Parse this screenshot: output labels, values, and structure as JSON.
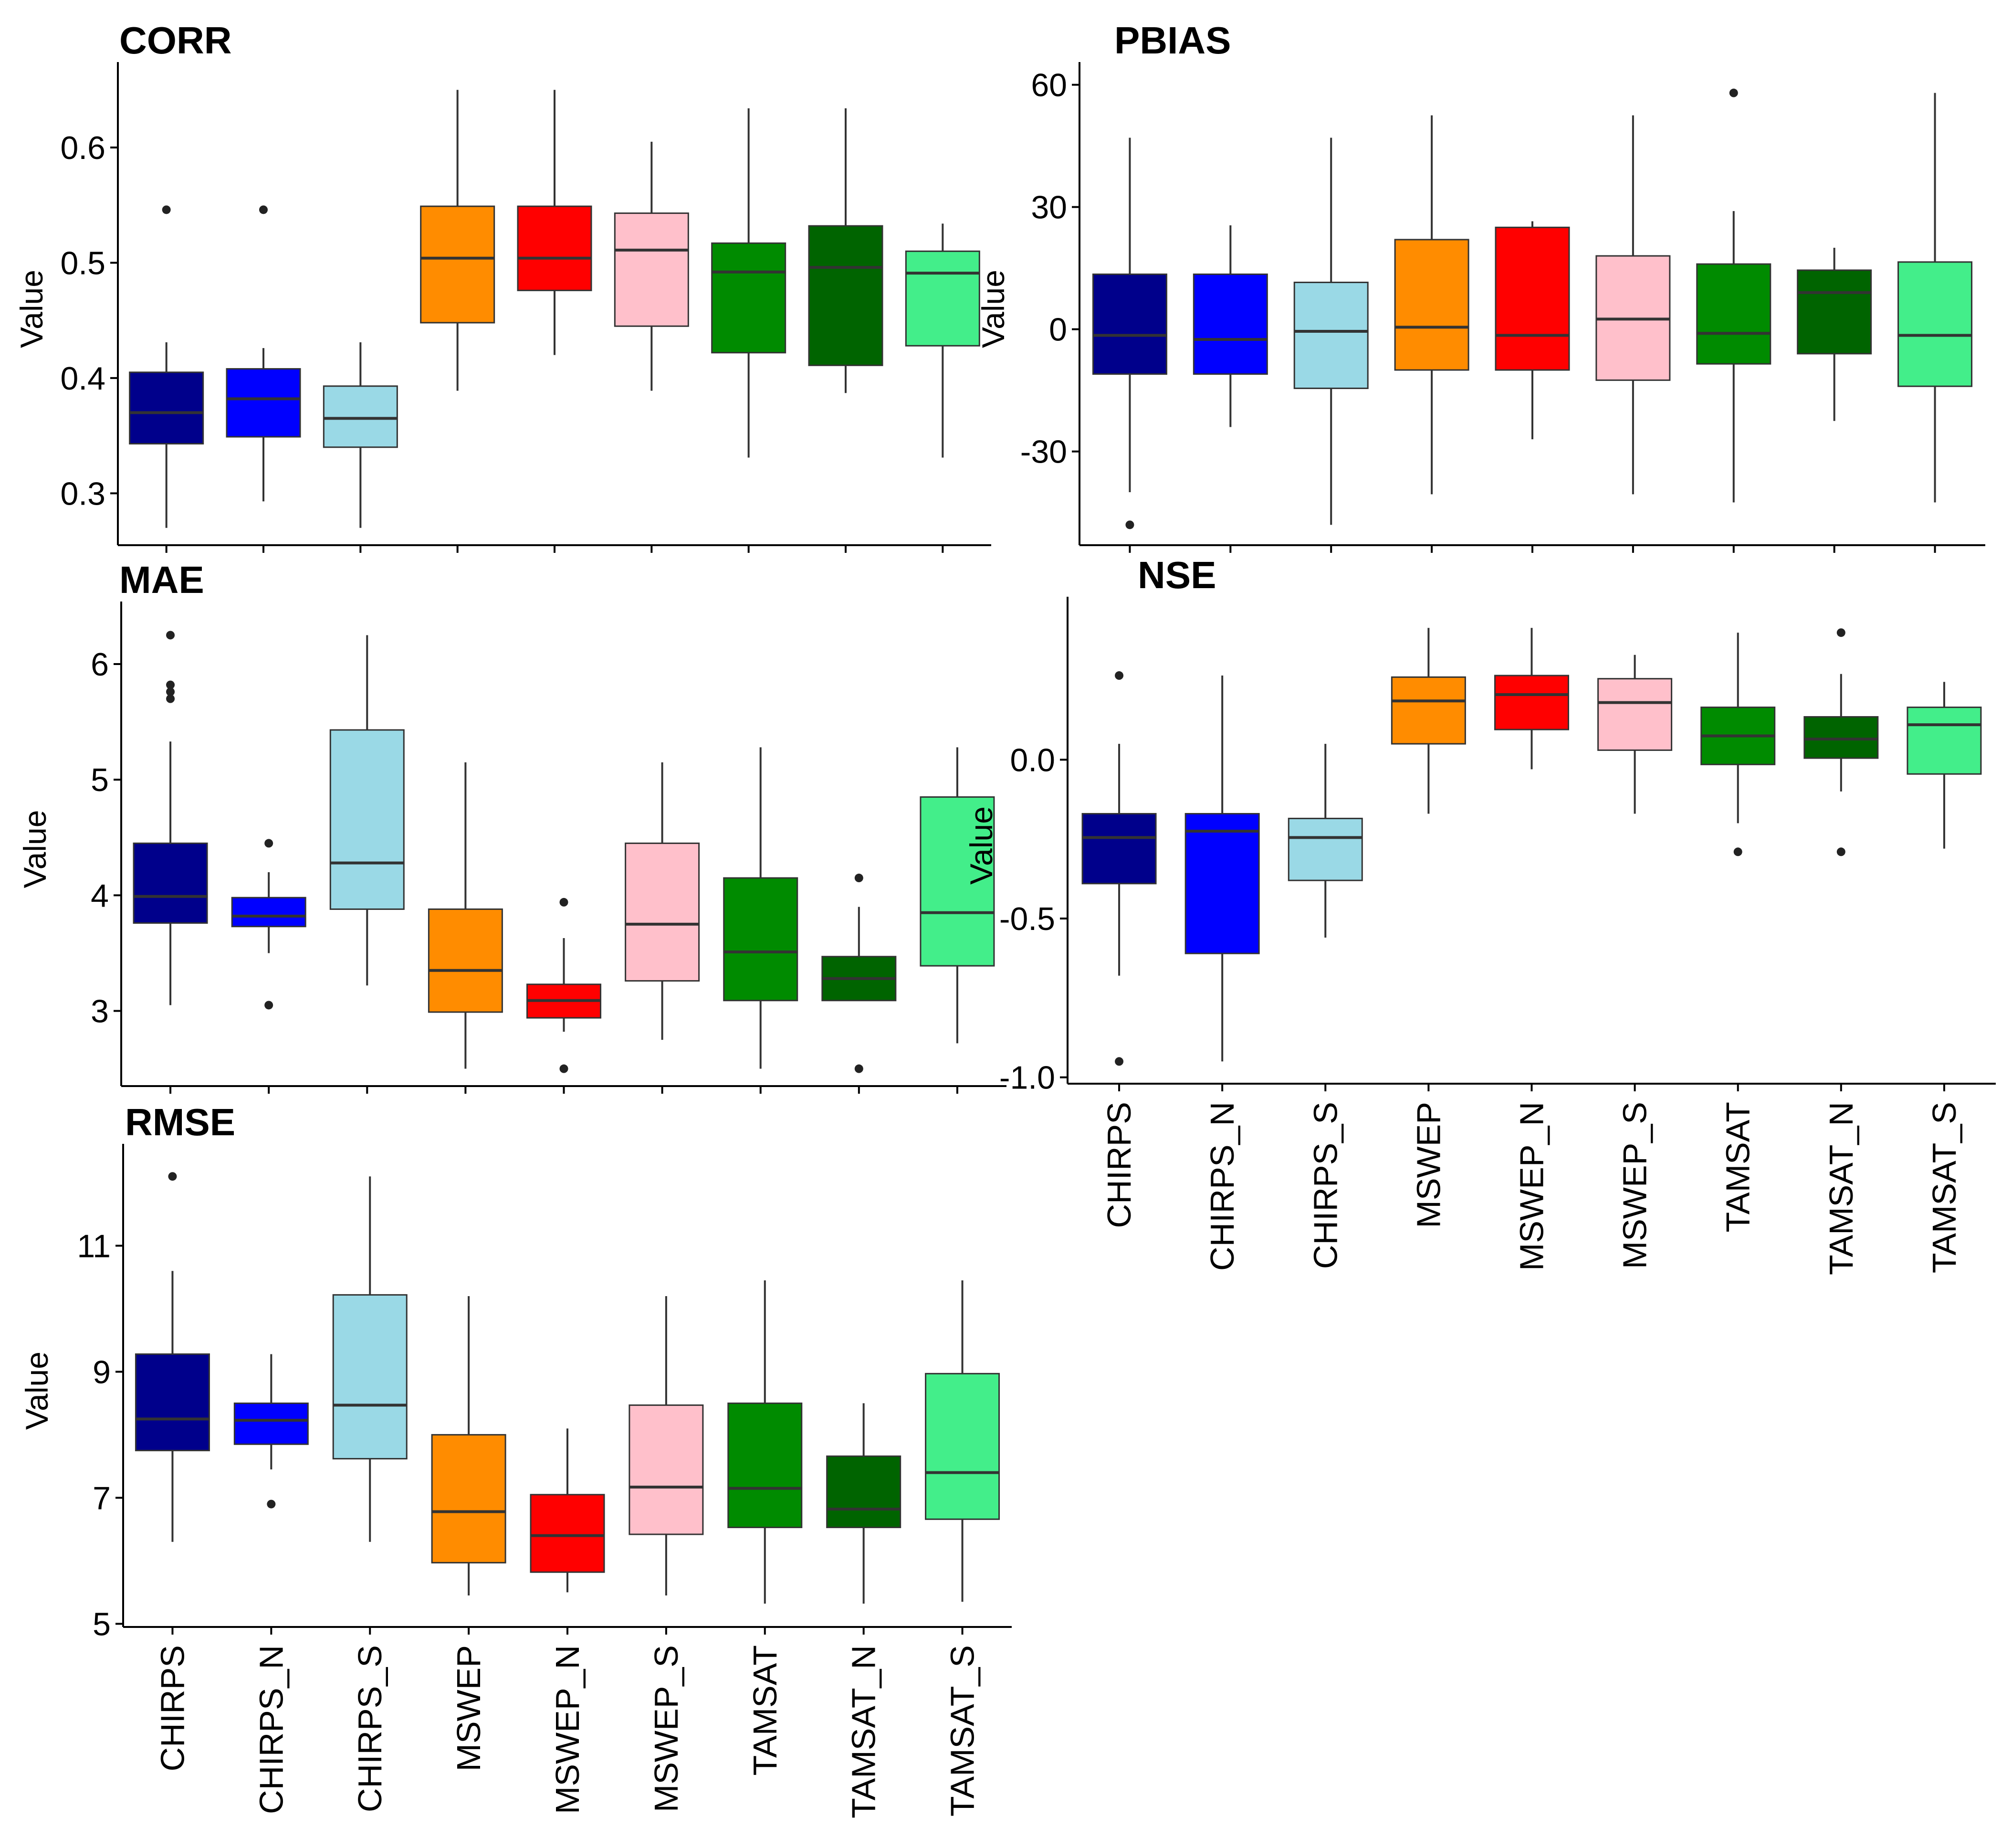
{
  "categories": [
    "CHIRPS",
    "CHIRPS_N",
    "CHIRPS_S",
    "MSWEP",
    "MSWEP_N",
    "MSWEP_S",
    "TAMSAT",
    "TAMSAT_N",
    "TAMSAT_S"
  ],
  "colors": [
    "#00008b",
    "#0000ff",
    "#9ad9e6",
    "#ff8c00",
    "#ff0000",
    "#ffc0cb",
    "#008b00",
    "#006400",
    "#43ee8a"
  ],
  "chart_data": [
    {
      "type": "boxplot",
      "title": "CORR",
      "ylabel": "Value",
      "ylim": [
        0.255,
        0.665
      ],
      "yticks": [
        0.3,
        0.4,
        0.5,
        0.6
      ],
      "ytick_labels": [
        "0.3",
        "0.4",
        "0.5",
        "0.6"
      ],
      "show_category_labels": false,
      "boxes": [
        {
          "low": 0.27,
          "q1": 0.343,
          "median": 0.37,
          "q3": 0.405,
          "high": 0.431,
          "outliers": [
            0.546
          ]
        },
        {
          "low": 0.293,
          "q1": 0.349,
          "median": 0.382,
          "q3": 0.408,
          "high": 0.426,
          "outliers": [
            0.546
          ]
        },
        {
          "low": 0.27,
          "q1": 0.34,
          "median": 0.365,
          "q3": 0.393,
          "high": 0.431,
          "outliers": []
        },
        {
          "low": 0.389,
          "q1": 0.448,
          "median": 0.504,
          "q3": 0.549,
          "high": 0.65,
          "outliers": []
        },
        {
          "low": 0.42,
          "q1": 0.476,
          "median": 0.504,
          "q3": 0.549,
          "high": 0.65,
          "outliers": []
        },
        {
          "low": 0.389,
          "q1": 0.445,
          "median": 0.511,
          "q3": 0.543,
          "high": 0.605,
          "outliers": []
        },
        {
          "low": 0.331,
          "q1": 0.422,
          "median": 0.492,
          "q3": 0.517,
          "high": 0.634,
          "outliers": []
        },
        {
          "low": 0.387,
          "q1": 0.411,
          "median": 0.496,
          "q3": 0.532,
          "high": 0.634,
          "outliers": []
        },
        {
          "low": 0.331,
          "q1": 0.428,
          "median": 0.491,
          "q3": 0.51,
          "high": 0.534,
          "outliers": []
        }
      ]
    },
    {
      "type": "boxplot",
      "title": "PBIAS",
      "ylabel": "Value",
      "ylim": [
        -53,
        63
      ],
      "yticks": [
        -30,
        0,
        30,
        60
      ],
      "ytick_labels": [
        "-30",
        "0",
        "30",
        "60"
      ],
      "show_category_labels": false,
      "boxes": [
        {
          "low": -40,
          "q1": -11,
          "median": -1.5,
          "q3": 13.5,
          "high": 47,
          "outliers": [
            -48
          ]
        },
        {
          "low": -24,
          "q1": -11,
          "median": -2.5,
          "q3": 13.5,
          "high": 25.5,
          "outliers": []
        },
        {
          "low": -48,
          "q1": -14.5,
          "median": -0.5,
          "q3": 11.5,
          "high": 47,
          "outliers": []
        },
        {
          "low": -40.5,
          "q1": -10,
          "median": 0.5,
          "q3": 22,
          "high": 52.5,
          "outliers": []
        },
        {
          "low": -27,
          "q1": -10,
          "median": -1.5,
          "q3": 25,
          "high": 26.5,
          "outliers": []
        },
        {
          "low": -40.5,
          "q1": -12.5,
          "median": 2.5,
          "q3": 18,
          "high": 52.5,
          "outliers": []
        },
        {
          "low": -42.5,
          "q1": -8.5,
          "median": -1,
          "q3": 16,
          "high": 29,
          "outliers": [
            58
          ]
        },
        {
          "low": -22.5,
          "q1": -6,
          "median": 9,
          "q3": 14.5,
          "high": 20,
          "outliers": []
        },
        {
          "low": -42.5,
          "q1": -14,
          "median": -1.5,
          "q3": 16.5,
          "high": 58,
          "outliers": []
        }
      ]
    },
    {
      "type": "boxplot",
      "title": "MAE",
      "ylabel": "Value",
      "ylim": [
        2.35,
        6.45
      ],
      "yticks": [
        3,
        4,
        5,
        6
      ],
      "ytick_labels": [
        "3",
        "4",
        "5",
        "6"
      ],
      "show_category_labels": false,
      "boxes": [
        {
          "low": 3.05,
          "q1": 3.76,
          "median": 3.99,
          "q3": 4.45,
          "high": 5.33,
          "outliers": [
            5.7,
            5.76,
            5.82,
            6.25
          ]
        },
        {
          "low": 3.5,
          "q1": 3.73,
          "median": 3.82,
          "q3": 3.98,
          "high": 4.2,
          "outliers": [
            3.05,
            4.45
          ]
        },
        {
          "low": 3.22,
          "q1": 3.88,
          "median": 4.28,
          "q3": 5.43,
          "high": 6.25,
          "outliers": []
        },
        {
          "low": 2.5,
          "q1": 2.99,
          "median": 3.35,
          "q3": 3.88,
          "high": 5.15,
          "outliers": []
        },
        {
          "low": 2.82,
          "q1": 2.94,
          "median": 3.09,
          "q3": 3.23,
          "high": 3.63,
          "outliers": [
            2.5,
            3.94
          ]
        },
        {
          "low": 2.75,
          "q1": 3.26,
          "median": 3.75,
          "q3": 4.45,
          "high": 5.15,
          "outliers": []
        },
        {
          "low": 2.5,
          "q1": 3.09,
          "median": 3.51,
          "q3": 4.15,
          "high": 5.28,
          "outliers": []
        },
        {
          "low": 3.09,
          "q1": 3.09,
          "median": 3.28,
          "q3": 3.47,
          "high": 3.9,
          "outliers": [
            2.5,
            4.15
          ]
        },
        {
          "low": 2.72,
          "q1": 3.39,
          "median": 3.85,
          "q3": 4.85,
          "high": 5.28,
          "outliers": []
        }
      ]
    },
    {
      "type": "boxplot",
      "title": "NSE",
      "ylabel": "Value",
      "ylim": [
        -1.02,
        0.48
      ],
      "yticks": [
        -1.0,
        -0.5,
        0.0
      ],
      "ytick_labels": [
        "-1.0",
        "-0.5",
        "0.0"
      ],
      "show_category_labels": true,
      "boxes": [
        {
          "low": -0.68,
          "q1": -0.39,
          "median": -0.245,
          "q3": -0.17,
          "high": 0.05,
          "outliers": [
            -0.95,
            0.265
          ]
        },
        {
          "low": -0.95,
          "q1": -0.61,
          "median": -0.225,
          "q3": -0.17,
          "high": 0.265,
          "outliers": []
        },
        {
          "low": -0.56,
          "q1": -0.38,
          "median": -0.245,
          "q3": -0.185,
          "high": 0.05,
          "outliers": []
        },
        {
          "low": -0.17,
          "q1": 0.05,
          "median": 0.185,
          "q3": 0.26,
          "high": 0.415,
          "outliers": []
        },
        {
          "low": -0.03,
          "q1": 0.095,
          "median": 0.205,
          "q3": 0.265,
          "high": 0.415,
          "outliers": []
        },
        {
          "low": -0.17,
          "q1": 0.03,
          "median": 0.18,
          "q3": 0.255,
          "high": 0.33,
          "outliers": []
        },
        {
          "low": -0.2,
          "q1": -0.015,
          "median": 0.075,
          "q3": 0.165,
          "high": 0.4,
          "outliers": [
            -0.29
          ]
        },
        {
          "low": -0.1,
          "q1": 0.005,
          "median": 0.065,
          "q3": 0.135,
          "high": 0.27,
          "outliers": [
            -0.29,
            0.4
          ]
        },
        {
          "low": -0.28,
          "q1": -0.045,
          "median": 0.11,
          "q3": 0.165,
          "high": 0.245,
          "outliers": []
        }
      ]
    },
    {
      "type": "boxplot",
      "title": "RMSE",
      "ylabel": "Value",
      "ylim": [
        4.95,
        12.45
      ],
      "yticks": [
        5,
        7,
        9,
        11
      ],
      "ytick_labels": [
        "5",
        "7",
        "9",
        "11"
      ],
      "show_category_labels": true,
      "boxes": [
        {
          "low": 6.3,
          "q1": 7.75,
          "median": 8.25,
          "q3": 9.28,
          "high": 10.6,
          "outliers": [
            12.1
          ]
        },
        {
          "low": 7.45,
          "q1": 7.85,
          "median": 8.23,
          "q3": 8.5,
          "high": 9.28,
          "outliers": [
            6.9
          ]
        },
        {
          "low": 6.3,
          "q1": 7.62,
          "median": 8.47,
          "q3": 10.22,
          "high": 12.1,
          "outliers": []
        },
        {
          "low": 5.45,
          "q1": 5.97,
          "median": 6.78,
          "q3": 8.0,
          "high": 10.2,
          "outliers": []
        },
        {
          "low": 5.5,
          "q1": 5.82,
          "median": 6.4,
          "q3": 7.05,
          "high": 8.1,
          "outliers": []
        },
        {
          "low": 5.45,
          "q1": 6.42,
          "median": 7.17,
          "q3": 8.47,
          "high": 10.2,
          "outliers": []
        },
        {
          "low": 5.32,
          "q1": 6.53,
          "median": 7.15,
          "q3": 8.5,
          "high": 10.45,
          "outliers": []
        },
        {
          "low": 5.32,
          "q1": 6.53,
          "median": 6.82,
          "q3": 7.66,
          "high": 8.5,
          "outliers": []
        },
        {
          "low": 5.35,
          "q1": 6.66,
          "median": 7.4,
          "q3": 8.97,
          "high": 10.45,
          "outliers": []
        }
      ]
    }
  ]
}
